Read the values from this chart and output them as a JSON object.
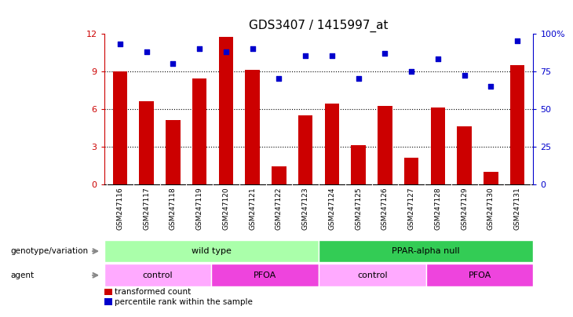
{
  "title": "GDS3407 / 1415997_at",
  "samples": [
    "GSM247116",
    "GSM247117",
    "GSM247118",
    "GSM247119",
    "GSM247120",
    "GSM247121",
    "GSM247122",
    "GSM247123",
    "GSM247124",
    "GSM247125",
    "GSM247126",
    "GSM247127",
    "GSM247128",
    "GSM247129",
    "GSM247130",
    "GSM247131"
  ],
  "bar_values": [
    9.0,
    6.6,
    5.1,
    8.4,
    11.7,
    9.1,
    1.4,
    5.5,
    6.4,
    3.1,
    6.2,
    2.1,
    6.1,
    4.6,
    1.0,
    9.5
  ],
  "dot_values": [
    93,
    88,
    80,
    90,
    88,
    90,
    70,
    85,
    85,
    70,
    87,
    75,
    83,
    72,
    65,
    95
  ],
  "bar_color": "#CC0000",
  "dot_color": "#0000CC",
  "ylim_left": [
    0,
    12
  ],
  "ylim_right": [
    0,
    100
  ],
  "yticks_left": [
    0,
    3,
    6,
    9,
    12
  ],
  "yticks_right": [
    0,
    25,
    50,
    75,
    100
  ],
  "yticklabels_right": [
    "0",
    "25",
    "50",
    "75",
    "100%"
  ],
  "genotype_groups": [
    {
      "label": "wild type",
      "start": 0,
      "end": 8,
      "color": "#AAFFAA"
    },
    {
      "label": "PPAR-alpha null",
      "start": 8,
      "end": 16,
      "color": "#33CC55"
    }
  ],
  "agent_groups": [
    {
      "label": "control",
      "start": 0,
      "end": 4,
      "color": "#FFAAFF"
    },
    {
      "label": "PFOA",
      "start": 4,
      "end": 8,
      "color": "#EE44DD"
    },
    {
      "label": "control",
      "start": 8,
      "end": 12,
      "color": "#FFAAFF"
    },
    {
      "label": "PFOA",
      "start": 12,
      "end": 16,
      "color": "#EE44DD"
    }
  ],
  "left_labels": [
    "genotype/variation",
    "agent"
  ],
  "background_color": "#FFFFFF",
  "tick_color_left": "#CC0000",
  "tick_color_right": "#0000CC",
  "xtick_bg_color": "#CCCCCC",
  "legend_bar_label": "transformed count",
  "legend_dot_label": "percentile rank within the sample"
}
